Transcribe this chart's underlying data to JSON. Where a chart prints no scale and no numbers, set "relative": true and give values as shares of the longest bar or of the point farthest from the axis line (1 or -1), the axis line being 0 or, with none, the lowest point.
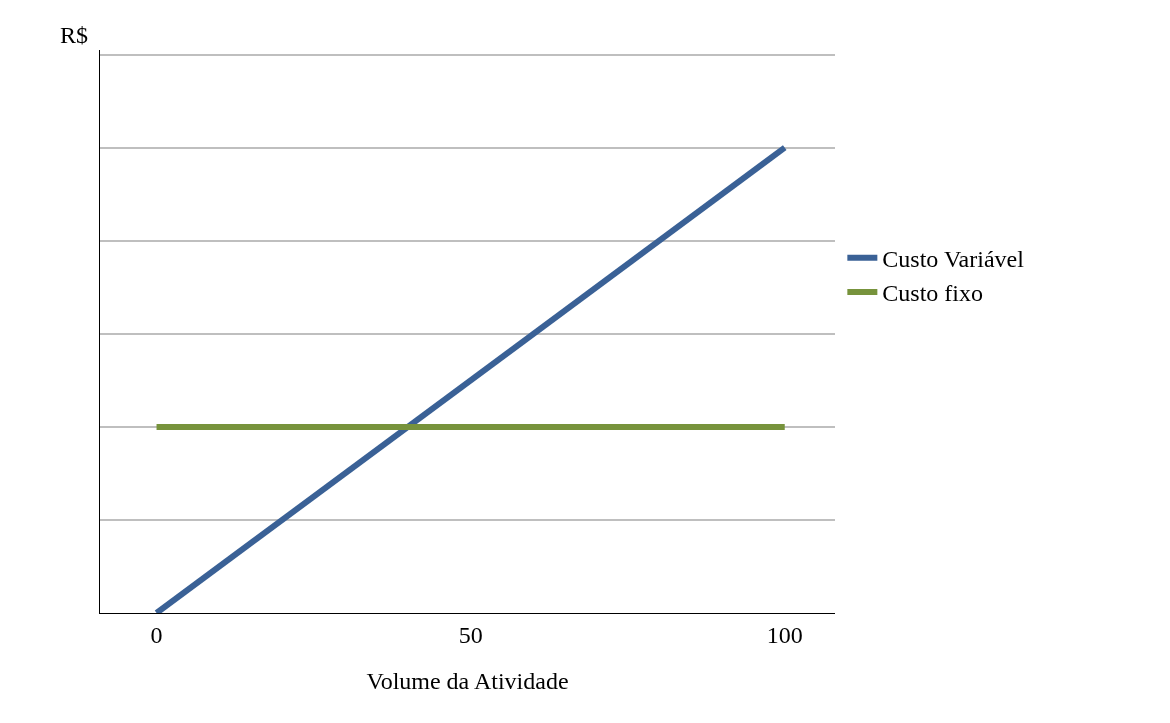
{
  "chart_data": {
    "type": "line",
    "xlabel": "Volume da Atividade",
    "ylabel": "R$",
    "relative": true,
    "x": [
      0,
      100
    ],
    "xlim": [
      -9,
      108
    ],
    "xticks": [
      0,
      50,
      100
    ],
    "grid": "y",
    "legend": "right",
    "marker": "none",
    "line_style": "solid",
    "series": [
      {
        "name": "Custo Variável",
        "color": "#3a6196",
        "values": [
          0,
          1
        ]
      },
      {
        "name": "Custo fixo",
        "color": "#77933c",
        "values": [
          0.4,
          0.4
        ]
      }
    ]
  }
}
